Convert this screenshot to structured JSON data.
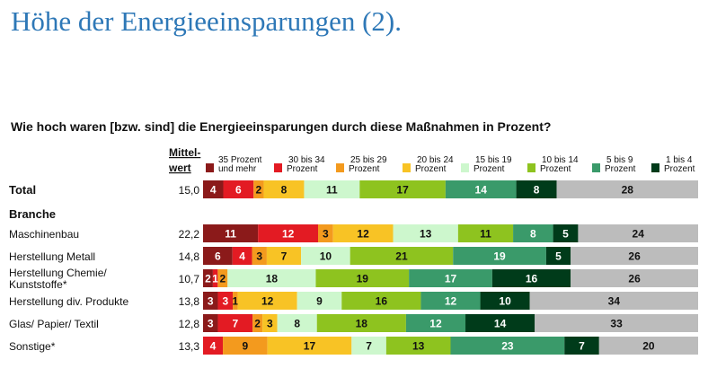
{
  "page": {
    "title": "Höhe der Energieeinsparungen (2).",
    "question": "Wie hoch waren [bzw. sind] die Energieeinsparungen durch diese Maßnahmen in Prozent?"
  },
  "chart_data": {
    "type": "bar",
    "stacked": true,
    "orientation": "horizontal",
    "title": "Höhe der Energieeinsparungen (2).",
    "subtitle": "Wie hoch waren [bzw. sind] die Energieeinsparungen durch diese Maßnahmen in Prozent?",
    "mean_header": [
      "Mittel-",
      "wert"
    ],
    "section_label": "Branche",
    "xlim": [
      0,
      100
    ],
    "legend": [
      {
        "label": [
          "35 Prozent",
          "und mehr"
        ],
        "color": "#8b1a1a"
      },
      {
        "label": [
          "30 bis 34",
          "Prozent"
        ],
        "color": "#e31b23"
      },
      {
        "label": [
          "25 bis 29",
          "Prozent"
        ],
        "color": "#f39a1e"
      },
      {
        "label": [
          "20 bis 24",
          "Prozent"
        ],
        "color": "#f8c325"
      },
      {
        "label": [
          "15 bis 19",
          "Prozent"
        ],
        "color": "#cdf7cd"
      },
      {
        "label": [
          "10 bis 14",
          "Prozent"
        ],
        "color": "#8ec31f"
      },
      {
        "label": [
          "5 bis 9",
          "Prozent"
        ],
        "color": "#3a9a6a"
      },
      {
        "label": [
          "1 bis 4",
          "Prozent"
        ],
        "color": "#003b1a"
      },
      {
        "label": [
          "",
          ""
        ],
        "color": "#bcbcbc"
      }
    ],
    "rows": [
      {
        "label": [
          "Total"
        ],
        "bold": true,
        "mean": "15,0",
        "values": [
          4,
          6,
          2,
          8,
          11,
          17,
          14,
          8,
          28
        ]
      },
      {
        "label": [
          "Maschinenbau"
        ],
        "bold": false,
        "mean": "22,2",
        "values": [
          11,
          12,
          3,
          12,
          13,
          11,
          8,
          5,
          24
        ]
      },
      {
        "label": [
          "Herstellung Metall"
        ],
        "bold": false,
        "mean": "14,8",
        "values": [
          6,
          4,
          3,
          7,
          10,
          21,
          19,
          5,
          26
        ]
      },
      {
        "label": [
          "Herstellung Chemie/",
          "Kunststoffe*"
        ],
        "bold": false,
        "mean": "10,7",
        "values": [
          2,
          1,
          2,
          0,
          18,
          19,
          17,
          16,
          26
        ]
      },
      {
        "label": [
          "Herstellung div. Produkte"
        ],
        "bold": false,
        "mean": "13,8",
        "values": [
          3,
          3,
          1,
          12,
          9,
          16,
          12,
          10,
          34
        ]
      },
      {
        "label": [
          "Glas/ Papier/ Textil"
        ],
        "bold": false,
        "mean": "12,8",
        "values": [
          3,
          7,
          2,
          3,
          8,
          18,
          12,
          14,
          33
        ]
      },
      {
        "label": [
          "Sonstige*"
        ],
        "bold": false,
        "mean": "13,3",
        "values": [
          0,
          4,
          9,
          17,
          7,
          13,
          23,
          7,
          20
        ]
      }
    ]
  }
}
